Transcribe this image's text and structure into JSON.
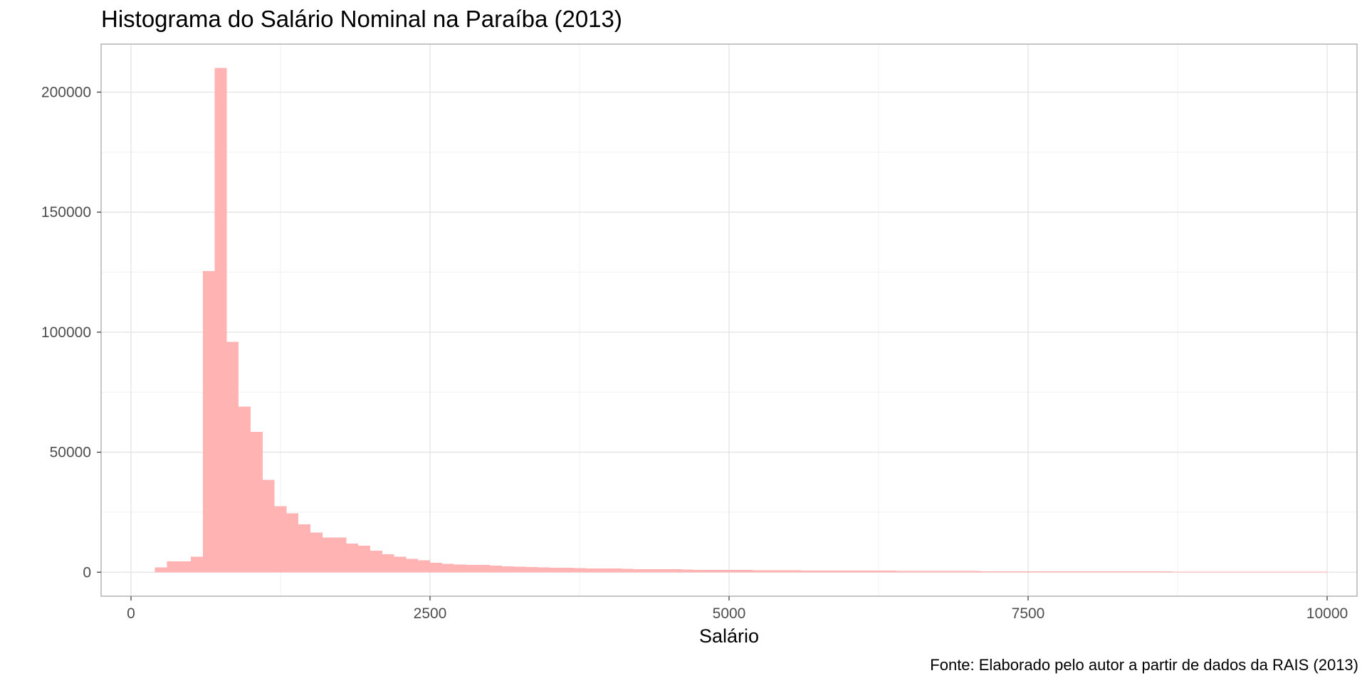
{
  "chart_data": {
    "type": "histogram",
    "title": "Histograma do Salário Nominal na Paraíba (2013)",
    "xlabel": "Salário",
    "ylabel": "",
    "caption": "Fonte: Elaborado pelo autor a partir de dados da RAIS (2013)",
    "xlim": [
      -250,
      10250
    ],
    "ylim": [
      -10000,
      220000
    ],
    "x_ticks": [
      0,
      2500,
      5000,
      7500,
      10000
    ],
    "x_tick_labels": [
      "0",
      "2500",
      "5000",
      "7500",
      "10000"
    ],
    "y_ticks": [
      0,
      50000,
      100000,
      150000,
      200000
    ],
    "y_tick_labels": [
      "0",
      "50000",
      "100000",
      "150000",
      "200000"
    ],
    "grid": true,
    "bar_color": "#ffb3b3",
    "bin_width": 100,
    "bin_starts": [
      200,
      300,
      400,
      500,
      600,
      700,
      800,
      900,
      1000,
      1100,
      1200,
      1300,
      1400,
      1500,
      1600,
      1700,
      1800,
      1900,
      2000,
      2100,
      2200,
      2300,
      2400,
      2500,
      2600,
      2700,
      2800,
      2900,
      3000,
      3100,
      3200,
      3300,
      3400,
      3500,
      3600,
      3700,
      3800,
      3900,
      4000,
      4100,
      4200,
      4300,
      4400,
      4500,
      4600,
      4700,
      4800,
      4900,
      5000,
      5100,
      5200,
      5300,
      5400,
      5500,
      5600,
      5700,
      5800,
      5900,
      6000,
      6100,
      6200,
      6300,
      6400,
      6500,
      6600,
      6700,
      6800,
      6900,
      7000,
      7100,
      7200,
      7300,
      7400,
      7500,
      7600,
      7700,
      7800,
      7900,
      8000,
      8100,
      8200,
      8300,
      8400,
      8500,
      8600,
      8700,
      8800,
      8900,
      9000,
      9100,
      9200,
      9300,
      9400,
      9500,
      9600,
      9700,
      9800,
      9900
    ],
    "counts": [
      2000,
      4500,
      4500,
      6500,
      125500,
      210000,
      96000,
      69000,
      58500,
      38500,
      27500,
      24500,
      20000,
      16500,
      14500,
      14500,
      12000,
      11000,
      9000,
      7500,
      6500,
      5500,
      5000,
      4000,
      3500,
      3200,
      3000,
      3000,
      2800,
      2500,
      2300,
      2100,
      2000,
      1800,
      1800,
      1700,
      1600,
      1600,
      1500,
      1400,
      1300,
      1300,
      1200,
      1200,
      1100,
      1000,
      1000,
      1000,
      900,
      900,
      800,
      800,
      800,
      800,
      700,
      700,
      700,
      700,
      600,
      600,
      600,
      600,
      500,
      500,
      500,
      500,
      500,
      500,
      500,
      400,
      400,
      400,
      400,
      400,
      400,
      300,
      300,
      300,
      300,
      300,
      300,
      300,
      300,
      300,
      300,
      250,
      250,
      250,
      250,
      250,
      250,
      200,
      200,
      200,
      200,
      200,
      200,
      200
    ]
  }
}
